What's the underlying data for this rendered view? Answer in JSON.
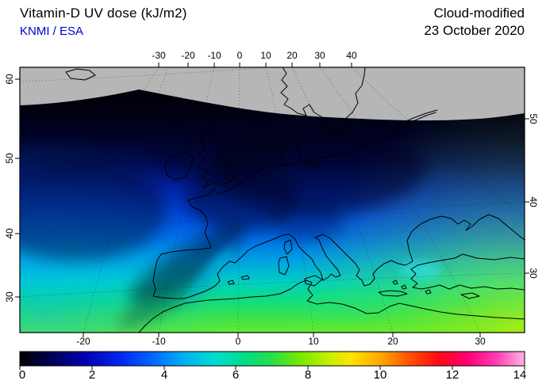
{
  "header": {
    "title": "Vitamin-D UV dose (kJ/m2)",
    "source": "KNMI / ESA",
    "product": "Cloud-modified",
    "date": "23 October 2020",
    "accent_blue": "#0000cc"
  },
  "map": {
    "axes": {
      "top": [
        "-30",
        "-20",
        "-10",
        "0",
        "10",
        "20",
        "30",
        "40"
      ],
      "bottom": [
        "-20",
        "-10",
        "0",
        "10",
        "20",
        "30"
      ],
      "left": [
        "60",
        "50",
        "40",
        "30"
      ],
      "right": [
        "50",
        "40",
        "30"
      ]
    },
    "nodata_color": "#b6b6b6",
    "coastline_color": "#000000",
    "frame_color": "#000000"
  },
  "colorbar": {
    "unit": "kJ/m2",
    "min": 0,
    "max": 14,
    "labels": [
      "0",
      "2",
      "4",
      "6",
      "8",
      "10",
      "12",
      "14"
    ],
    "stops": [
      {
        "v": 0,
        "c": "#000000"
      },
      {
        "v": 0.8,
        "c": "#000050"
      },
      {
        "v": 1.8,
        "c": "#0000b0"
      },
      {
        "v": 2.8,
        "c": "#0028f0"
      },
      {
        "v": 3.8,
        "c": "#0070ff"
      },
      {
        "v": 4.6,
        "c": "#00b4f0"
      },
      {
        "v": 5.4,
        "c": "#00dcd0"
      },
      {
        "v": 6.2,
        "c": "#00dc8c"
      },
      {
        "v": 7.0,
        "c": "#28e046"
      },
      {
        "v": 7.8,
        "c": "#78e800"
      },
      {
        "v": 8.6,
        "c": "#c8f000"
      },
      {
        "v": 9.2,
        "c": "#ffe400"
      },
      {
        "v": 10.0,
        "c": "#ffa800"
      },
      {
        "v": 10.8,
        "c": "#ff5400"
      },
      {
        "v": 11.6,
        "c": "#ff0a14"
      },
      {
        "v": 12.4,
        "c": "#ff0070"
      },
      {
        "v": 13.2,
        "c": "#ff3cb4"
      },
      {
        "v": 14,
        "c": "#ffb4e6"
      }
    ]
  }
}
